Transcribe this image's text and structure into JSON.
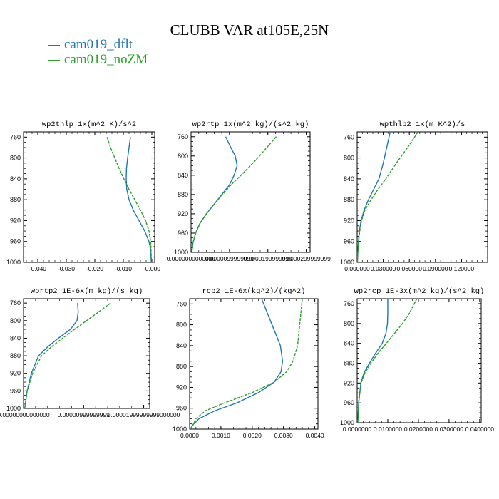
{
  "title": "CLUBB VAR at105E,25N",
  "legend": [
    {
      "label": "cam019_dflt",
      "color": "#1f77b4"
    },
    {
      "label": "cam019_noZM",
      "color": "#2ca02c"
    }
  ],
  "chart_data": [
    {
      "type": "line",
      "title": "wp2thlp  1x(m^2 K)/s^2",
      "xlim": [
        -0.045,
        0.001
      ],
      "ylim": [
        1000,
        750
      ],
      "yticks": [
        760,
        800,
        840,
        880,
        920,
        960,
        1000
      ],
      "xticks": [
        -0.04,
        -0.03,
        -0.02,
        -0.01,
        0.0
      ],
      "xticklabels": [
        "-0.040",
        "-0.030",
        "-0.020",
        "-0.010",
        "-0.000"
      ],
      "series": [
        {
          "name": "cam019_dflt",
          "color": "#1f77b4",
          "dash": "",
          "x": [
            -0.0075,
            -0.008,
            -0.0085,
            -0.0089,
            -0.009,
            -0.0088,
            -0.008,
            -0.0065,
            -0.0045,
            -0.0025,
            -0.001,
            -0.0004,
            -0.0003,
            -0.0002
          ],
          "y": [
            760,
            780,
            800,
            820,
            840,
            860,
            880,
            900,
            920,
            940,
            960,
            975,
            990,
            1000
          ]
        },
        {
          "name": "cam019_noZM",
          "color": "#2ca02c",
          "dash": "4,1.5",
          "x": [
            -0.0157,
            -0.0145,
            -0.013,
            -0.0115,
            -0.0098,
            -0.008,
            -0.006,
            -0.004,
            -0.0022,
            -0.001,
            -0.0004,
            -0.0003,
            -0.0002,
            -0.0001
          ],
          "y": [
            760,
            780,
            800,
            820,
            840,
            860,
            880,
            900,
            920,
            940,
            960,
            975,
            990,
            1000
          ]
        }
      ]
    },
    {
      "type": "line",
      "title": "wp2rtp  1x(m^2 kg)/(s^2 kg)",
      "xlim": [
        0,
        3.1e-05
      ],
      "ylim": [
        1000,
        750
      ],
      "yticks": [
        760,
        800,
        840,
        880,
        920,
        960,
        1000
      ],
      "xticks": [
        0,
        1e-05,
        2e-05,
        3e-05
      ],
      "xticklabels": [
        "0.0000000000000",
        "0.0000099999999",
        "0.0000199999999",
        "0.0000299999999"
      ],
      "series": [
        {
          "name": "cam019_dflt",
          "color": "#1f77b4",
          "dash": "",
          "x": [
            9e-06,
            1.02e-05,
            1.15e-05,
            1.2e-05,
            1.12e-05,
            1e-05,
            8e-06,
            6e-06,
            4e-06,
            2.3e-06,
            1.2e-06,
            5e-07,
            2e-07
          ],
          "y": [
            760,
            780,
            800,
            820,
            840,
            860,
            880,
            900,
            920,
            940,
            960,
            980,
            1000
          ]
        },
        {
          "name": "cam019_noZM",
          "color": "#2ca02c",
          "dash": "4,1.5",
          "x": [
            2.22e-05,
            2e-05,
            1.78e-05,
            1.55e-05,
            1.3e-05,
            1.04e-05,
            8.2e-06,
            6e-06,
            4e-06,
            2.3e-06,
            1.2e-06,
            5e-07,
            2e-07
          ],
          "y": [
            760,
            780,
            800,
            820,
            840,
            860,
            880,
            900,
            920,
            940,
            960,
            980,
            1000
          ]
        }
      ]
    },
    {
      "type": "line",
      "title": "wpthlp2  1x(m K^2)/s",
      "xlim": [
        0,
        0.15
      ],
      "ylim": [
        1000,
        750
      ],
      "yticks": [
        760,
        800,
        840,
        880,
        920,
        960,
        1000
      ],
      "xticks": [
        0,
        0.03,
        0.06,
        0.09,
        0.12
      ],
      "xticklabels": [
        "0.000000",
        "0.030000",
        "0.060000",
        "0.090000",
        "0.120000"
      ],
      "series": [
        {
          "name": "cam019_dflt",
          "color": "#1f77b4",
          "dash": "",
          "x": [
            0.038,
            0.034,
            0.03,
            0.025,
            0.019,
            0.013,
            0.008,
            0.0045,
            0.0025,
            0.0015,
            0.0008,
            0.0003
          ],
          "y": [
            750,
            780,
            810,
            840,
            860,
            880,
            900,
            920,
            940,
            960,
            980,
            1000
          ]
        },
        {
          "name": "cam019_noZM",
          "color": "#2ca02c",
          "dash": "4,1.5",
          "x": [
            0.07,
            0.058,
            0.045,
            0.033,
            0.024,
            0.016,
            0.009,
            0.005,
            0.003,
            0.0017,
            0.0008,
            0.0003
          ],
          "y": [
            750,
            780,
            810,
            840,
            860,
            880,
            900,
            920,
            940,
            960,
            980,
            1000
          ]
        }
      ]
    },
    {
      "type": "line",
      "title": "wprtp2  1E-6x(m kg)/(s kg)",
      "xlim": [
        0,
        2.1e-05
      ],
      "ylim": [
        1000,
        750
      ],
      "yticks": [
        760,
        800,
        840,
        880,
        920,
        960,
        1000
      ],
      "xticks": [
        0,
        1e-05,
        2e-05
      ],
      "xticklabels": [
        "0.00000000000000",
        "0.00000999999999",
        "0.00001999999999000000"
      ],
      "series": [
        {
          "name": "cam019_dflt",
          "color": "#1f77b4",
          "dash": "",
          "x": [
            9e-06,
            9.1e-06,
            8.9e-06,
            7.8e-06,
            5.8e-06,
            4e-06,
            2.5e-06,
            1.3e-06,
            6e-07,
            2e-07
          ],
          "y": [
            760,
            780,
            800,
            820,
            840,
            860,
            880,
            920,
            960,
            1000
          ]
        },
        {
          "name": "cam019_noZM",
          "color": "#2ca02c",
          "dash": "4,1.5",
          "x": [
            1.45e-05,
            1.25e-05,
            1.05e-05,
            8.5e-06,
            6.5e-06,
            4.6e-06,
            3e-06,
            1.5e-06,
            6e-07,
            2e-07
          ],
          "y": [
            760,
            780,
            800,
            820,
            840,
            860,
            880,
            920,
            960,
            1000
          ]
        }
      ]
    },
    {
      "type": "line",
      "title": "rcp2  1E-6x(kg^2)/(kg^2)",
      "xlim": [
        0,
        0.0041
      ],
      "ylim": [
        1000,
        750
      ],
      "yticks": [
        760,
        800,
        840,
        880,
        920,
        960,
        1000
      ],
      "xticks": [
        0,
        0.001,
        0.002,
        0.003,
        0.004
      ],
      "xticklabels": [
        "0.0000",
        "0.0010",
        "0.0020",
        "0.0030",
        "0.0040"
      ],
      "series": [
        {
          "name": "cam019_dflt",
          "color": "#1f77b4",
          "dash": "",
          "x": [
            0.0023,
            0.0025,
            0.0027,
            0.0029,
            0.00297,
            0.00292,
            0.0027,
            0.0022,
            0.0015,
            0.0008,
            0.0003,
            0.0001,
            2e-05
          ],
          "y": [
            750,
            780,
            810,
            840,
            870,
            890,
            910,
            930,
            950,
            965,
            980,
            992,
            1000
          ]
        },
        {
          "name": "cam019_noZM",
          "color": "#2ca02c",
          "dash": "4,1.5",
          "x": [
            0.0036,
            0.00355,
            0.0035,
            0.00345,
            0.0033,
            0.0031,
            0.0027,
            0.002,
            0.0011,
            0.0005,
            0.0002,
            5e-05
          ],
          "y": [
            750,
            780,
            810,
            840,
            870,
            890,
            910,
            930,
            950,
            965,
            980,
            1000
          ]
        }
      ]
    },
    {
      "type": "line",
      "title": "wp2rcp  1E-3x(m^2 kg)/(s^2 kg)",
      "xlim": [
        0,
        0.0405
      ],
      "ylim": [
        1000,
        750
      ],
      "yticks": [
        760,
        800,
        840,
        880,
        920,
        960,
        1000
      ],
      "xticks": [
        0,
        0.01,
        0.02,
        0.03,
        0.04
      ],
      "xticklabels": [
        "0.0000000",
        "0.0100000",
        "0.0200000",
        "0.0300000",
        "0.0400000"
      ],
      "series": [
        {
          "name": "cam019_dflt",
          "color": "#1f77b4",
          "dash": "",
          "x": [
            0.01,
            0.01,
            0.0099,
            0.0094,
            0.0082,
            0.006,
            0.004,
            0.0022,
            0.0012,
            0.0005,
            0.0002
          ],
          "y": [
            750,
            780,
            800,
            820,
            840,
            860,
            880,
            900,
            920,
            960,
            1000
          ]
        },
        {
          "name": "cam019_noZM",
          "color": "#2ca02c",
          "dash": "4,1.5",
          "x": [
            0.0195,
            0.017,
            0.0148,
            0.0122,
            0.0095,
            0.0068,
            0.0045,
            0.0025,
            0.0013,
            0.0005,
            0.0002
          ],
          "y": [
            750,
            780,
            800,
            820,
            840,
            860,
            880,
            900,
            920,
            960,
            1000
          ]
        }
      ]
    }
  ]
}
